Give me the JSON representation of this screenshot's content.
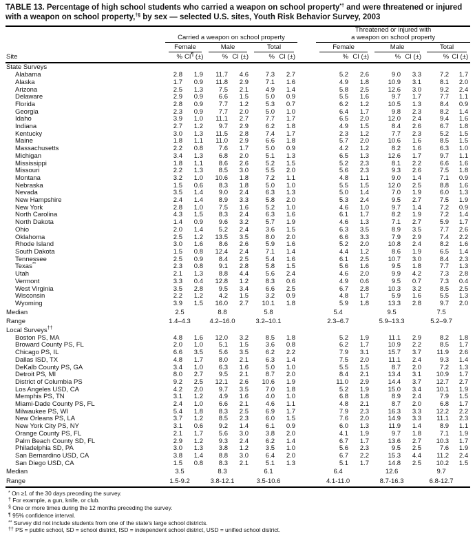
{
  "title": {
    "part1": "TABLE 13. Percentage of high school students who carried a weapon on school property",
    "sup1": "*†",
    "part2": " and were threatened or injured with a weapon on school property,",
    "sup2": "†§",
    "part3": " by sex — selected U.S. sites, Youth Risk Behavior Survey, 2003"
  },
  "header": {
    "site_label": "Site",
    "groups": [
      {
        "label": "Carried a weapon on school property"
      },
      {
        "label": "Threatened or injured with\na weapon on school property"
      }
    ],
    "subgroups": [
      "Female",
      "Male",
      "Total"
    ],
    "pct_label": "%",
    "ci_label": "CI (±)",
    "ci_first": {
      "pre": "CI",
      "sup": "¶",
      "post": " (±)"
    }
  },
  "sections": [
    {
      "label": "State Surveys",
      "label_sup": "",
      "rows": [
        {
          "site": "Alabama",
          "values": [
            "2.8",
            "1.9",
            "11.7",
            "4.6",
            "7.3",
            "2.7",
            "5.2",
            "2.6",
            "9.0",
            "3.3",
            "7.2",
            "1.7"
          ]
        },
        {
          "site": "Alaska",
          "values": [
            "1.7",
            "0.9",
            "11.8",
            "2.9",
            "7.1",
            "1.6",
            "4.9",
            "1.8",
            "10.9",
            "3.1",
            "8.1",
            "2.0"
          ]
        },
        {
          "site": "Arizona",
          "values": [
            "2.5",
            "1.3",
            "7.5",
            "2.1",
            "4.9",
            "1.4",
            "5.8",
            "2.5",
            "12.6",
            "3.0",
            "9.2",
            "2.4"
          ]
        },
        {
          "site": "Delaware",
          "values": [
            "2.9",
            "0.9",
            "6.6",
            "1.5",
            "5.0",
            "0.9",
            "5.5",
            "1.6",
            "9.7",
            "1.7",
            "7.7",
            "1.1"
          ]
        },
        {
          "site": "Florida",
          "values": [
            "2.8",
            "0.9",
            "7.7",
            "1.2",
            "5.3",
            "0.7",
            "6.2",
            "1.2",
            "10.5",
            "1.3",
            "8.4",
            "0.9"
          ]
        },
        {
          "site": "Georgia",
          "values": [
            "2.3",
            "0.9",
            "7.7",
            "2.0",
            "5.0",
            "1.0",
            "6.4",
            "1.7",
            "9.8",
            "2.3",
            "8.2",
            "1.4"
          ]
        },
        {
          "site": "Idaho",
          "values": [
            "3.9",
            "1.0",
            "11.1",
            "2.7",
            "7.7",
            "1.7",
            "6.5",
            "2.0",
            "12.0",
            "2.4",
            "9.4",
            "1.6"
          ]
        },
        {
          "site": "Indiana",
          "values": [
            "2.7",
            "1.2",
            "9.7",
            "2.9",
            "6.2",
            "1.8",
            "4.9",
            "1.5",
            "8.4",
            "2.6",
            "6.7",
            "1.8"
          ]
        },
        {
          "site": "Kentucky",
          "values": [
            "3.0",
            "1.3",
            "11.5",
            "2.8",
            "7.4",
            "1.7",
            "2.3",
            "1.2",
            "7.7",
            "2.3",
            "5.2",
            "1.5"
          ]
        },
        {
          "site": "Maine",
          "values": [
            "1.8",
            "1.1",
            "11.0",
            "2.9",
            "6.6",
            "1.8",
            "5.7",
            "2.0",
            "10.6",
            "1.6",
            "8.5",
            "1.5"
          ]
        },
        {
          "site": "Massachusetts",
          "values": [
            "2.2",
            "0.8",
            "7.6",
            "1.7",
            "5.0",
            "0.9",
            "4.2",
            "1.2",
            "8.2",
            "1.6",
            "6.3",
            "1.0"
          ]
        },
        {
          "site": "Michigan",
          "values": [
            "3.4",
            "1.3",
            "6.8",
            "2.0",
            "5.1",
            "1.3",
            "6.5",
            "1.3",
            "12.6",
            "1.7",
            "9.7",
            "1.1"
          ]
        },
        {
          "site": "Mississippi",
          "values": [
            "1.8",
            "1.1",
            "8.6",
            "2.6",
            "5.2",
            "1.5",
            "5.2",
            "2.3",
            "8.1",
            "2.2",
            "6.6",
            "1.6"
          ]
        },
        {
          "site": "Missouri",
          "values": [
            "2.2",
            "1.3",
            "8.5",
            "3.0",
            "5.5",
            "2.0",
            "5.6",
            "2.3",
            "9.3",
            "2.6",
            "7.5",
            "1.8"
          ]
        },
        {
          "site": "Montana",
          "values": [
            "3.2",
            "1.0",
            "10.6",
            "1.8",
            "7.2",
            "1.1",
            "4.8",
            "1.1",
            "9.0",
            "1.4",
            "7.1",
            "0.9"
          ]
        },
        {
          "site": "Nebraska",
          "values": [
            "1.5",
            "0.6",
            "8.3",
            "1.8",
            "5.0",
            "1.0",
            "5.5",
            "1.5",
            "12.0",
            "2.5",
            "8.8",
            "1.6"
          ]
        },
        {
          "site": "Nevada",
          "values": [
            "3.5",
            "1.4",
            "9.0",
            "2.4",
            "6.3",
            "1.3",
            "5.0",
            "1.4",
            "7.0",
            "1.9",
            "6.0",
            "1.3"
          ]
        },
        {
          "site": "New Hampshire",
          "values": [
            "2.4",
            "1.4",
            "8.9",
            "3.3",
            "5.8",
            "2.0",
            "5.3",
            "2.4",
            "9.5",
            "2.7",
            "7.5",
            "1.9"
          ]
        },
        {
          "site": "New York",
          "values": [
            "2.8",
            "1.0",
            "7.5",
            "1.6",
            "5.2",
            "1.0",
            "4.6",
            "1.0",
            "9.7",
            "1.4",
            "7.2",
            "0.9"
          ]
        },
        {
          "site": "North Carolina",
          "values": [
            "4.3",
            "1.5",
            "8.3",
            "2.4",
            "6.3",
            "1.6",
            "6.1",
            "1.7",
            "8.2",
            "1.9",
            "7.2",
            "1.4"
          ]
        },
        {
          "site": "North Dakota",
          "values": [
            "1.4",
            "0.9",
            "9.6",
            "3.2",
            "5.7",
            "1.9",
            "4.6",
            "1.3",
            "7.1",
            "2.7",
            "5.9",
            "1.7"
          ]
        },
        {
          "site": "Ohio",
          "values": [
            "2.0",
            "1.4",
            "5.2",
            "2.4",
            "3.6",
            "1.5",
            "6.3",
            "3.5",
            "8.9",
            "3.5",
            "7.7",
            "2.6"
          ]
        },
        {
          "site": "Oklahoma",
          "values": [
            "2.5",
            "1.2",
            "13.5",
            "3.5",
            "8.0",
            "2.0",
            "6.6",
            "3.3",
            "7.9",
            "2.9",
            "7.4",
            "2.2"
          ]
        },
        {
          "site": "Rhode Island",
          "values": [
            "3.0",
            "1.6",
            "8.6",
            "2.6",
            "5.9",
            "1.6",
            "5.2",
            "2.0",
            "10.8",
            "2.4",
            "8.2",
            "1.6"
          ]
        },
        {
          "site": "South Dakota",
          "values": [
            "1.5",
            "0.8",
            "12.4",
            "2.4",
            "7.1",
            "1.4",
            "4.4",
            "1.2",
            "8.6",
            "1.9",
            "6.5",
            "1.4"
          ]
        },
        {
          "site": "Tennessee",
          "values": [
            "2.5",
            "0.9",
            "8.4",
            "2.5",
            "5.4",
            "1.6",
            "6.1",
            "2.5",
            "10.7",
            "3.0",
            "8.4",
            "2.3"
          ]
        },
        {
          "site": "Texas**",
          "values": [
            "2.3",
            "0.8",
            "9.1",
            "2.8",
            "5.8",
            "1.5",
            "5.6",
            "1.6",
            "9.5",
            "1.8",
            "7.7",
            "1.3"
          ]
        },
        {
          "site": "Utah",
          "values": [
            "2.1",
            "1.3",
            "8.8",
            "4.4",
            "5.6",
            "2.4",
            "4.6",
            "2.0",
            "9.9",
            "4.2",
            "7.3",
            "2.8"
          ]
        },
        {
          "site": "Vermont",
          "values": [
            "3.3",
            "0.4",
            "12.8",
            "1.2",
            "8.3",
            "0.6",
            "4.9",
            "0.6",
            "9.5",
            "0.7",
            "7.3",
            "0.4"
          ]
        },
        {
          "site": "West Virginia",
          "values": [
            "3.5",
            "2.8",
            "9.5",
            "3.4",
            "6.6",
            "2.5",
            "6.7",
            "2.8",
            "10.3",
            "3.2",
            "8.5",
            "2.5"
          ]
        },
        {
          "site": "Wisconsin",
          "values": [
            "2.2",
            "1.2",
            "4.2",
            "1.5",
            "3.2",
            "0.9",
            "4.8",
            "1.7",
            "5.9",
            "1.6",
            "5.5",
            "1.3"
          ]
        },
        {
          "site": "Wyoming",
          "values": [
            "3.9",
            "1.5",
            "16.0",
            "2.7",
            "10.1",
            "1.8",
            "5.9",
            "1.8",
            "13.3",
            "2.8",
            "9.7",
            "2.0"
          ]
        }
      ],
      "median": {
        "label": "Median",
        "values": [
          "2.5",
          "8.8",
          "5.8",
          "5.4",
          "9.5",
          "7.5"
        ]
      },
      "range": {
        "label": "Range",
        "values": [
          "1.4–4.3",
          "4.2–16.0",
          "3.2–10.1",
          "2.3–6.7",
          "5.9–13.3",
          "5.2–9.7"
        ]
      }
    },
    {
      "label": "Local Surveys",
      "label_sup": "††",
      "rows": [
        {
          "site": "Boston PS, MA",
          "values": [
            "4.8",
            "1.6",
            "12.0",
            "3.2",
            "8.5",
            "1.8",
            "5.2",
            "1.9",
            "11.1",
            "2.9",
            "8.2",
            "1.8"
          ]
        },
        {
          "site": "Broward County PS, FL",
          "values": [
            "2.0",
            "1.0",
            "5.1",
            "1.5",
            "3.6",
            "0.8",
            "6.2",
            "1.7",
            "10.9",
            "2.2",
            "8.5",
            "1.7"
          ]
        },
        {
          "site": "Chicago PS, IL",
          "values": [
            "6.6",
            "3.5",
            "5.6",
            "3.5",
            "6.2",
            "2.2",
            "7.9",
            "3.1",
            "15.7",
            "3.7",
            "11.9",
            "2.6"
          ]
        },
        {
          "site": "Dallas ISD, TX",
          "values": [
            "4.8",
            "1.7",
            "8.0",
            "2.1",
            "6.3",
            "1.4",
            "7.5",
            "2.0",
            "11.1",
            "2.4",
            "9.3",
            "1.4"
          ]
        },
        {
          "site": "DeKalb County PS, GA",
          "values": [
            "3.4",
            "1.0",
            "6.3",
            "1.6",
            "5.0",
            "1.0",
            "5.5",
            "1.5",
            "8.7",
            "2.0",
            "7.2",
            "1.3"
          ]
        },
        {
          "site": "Detroit PS, MI",
          "values": [
            "8.0",
            "2.7",
            "9.5",
            "2.1",
            "8.7",
            "2.0",
            "8.4",
            "2.1",
            "13.4",
            "3.1",
            "10.9",
            "1.7"
          ]
        },
        {
          "site": "District of Columbia PS",
          "values": [
            "9.2",
            "2.5",
            "12.1",
            "2.6",
            "10.6",
            "1.9",
            "11.0",
            "2.9",
            "14.4",
            "3.7",
            "12.7",
            "2.7"
          ]
        },
        {
          "site": "Los Angeles USD, CA",
          "values": [
            "4.2",
            "2.0",
            "9.7",
            "3.5",
            "7.0",
            "1.8",
            "5.2",
            "1.9",
            "15.0",
            "3.4",
            "10.1",
            "1.9"
          ]
        },
        {
          "site": "Memphis PS, TN",
          "values": [
            "3.1",
            "1.2",
            "4.9",
            "1.6",
            "4.0",
            "1.0",
            "6.8",
            "1.8",
            "8.9",
            "2.4",
            "7.9",
            "1.5"
          ]
        },
        {
          "site": "Miami-Dade County PS, FL",
          "values": [
            "2.4",
            "1.0",
            "6.6",
            "2.1",
            "4.6",
            "1.1",
            "4.8",
            "2.1",
            "8.7",
            "2.0",
            "6.8",
            "1.7"
          ]
        },
        {
          "site": "Milwaukee PS, WI",
          "values": [
            "5.4",
            "1.8",
            "8.3",
            "2.5",
            "6.9",
            "1.7",
            "7.9",
            "2.3",
            "16.3",
            "3.3",
            "12.2",
            "2.2"
          ]
        },
        {
          "site": "New Orleans PS, LA",
          "values": [
            "3.7",
            "1.2",
            "8.5",
            "2.3",
            "6.0",
            "1.5",
            "7.6",
            "2.0",
            "14.9",
            "3.3",
            "11.1",
            "2.3"
          ]
        },
        {
          "site": "New York City PS, NY",
          "values": [
            "3.1",
            "0.6",
            "9.2",
            "1.4",
            "6.1",
            "0.9",
            "6.0",
            "1.3",
            "11.9",
            "1.4",
            "8.9",
            "1.1"
          ]
        },
        {
          "site": "Orange County PS, FL",
          "values": [
            "2.1",
            "1.7",
            "5.6",
            "3.0",
            "3.8",
            "2.0",
            "4.1",
            "1.9",
            "9.7",
            "1.8",
            "7.1",
            "1.9"
          ]
        },
        {
          "site": "Palm Beach County SD, FL",
          "values": [
            "2.9",
            "1.2",
            "9.3",
            "2.4",
            "6.2",
            "1.4",
            "6.7",
            "1.7",
            "13.6",
            "2.7",
            "10.3",
            "1.7"
          ]
        },
        {
          "site": "Philadelphia SD, PA",
          "values": [
            "3.0",
            "1.3",
            "3.8",
            "1.2",
            "3.5",
            "1.0",
            "5.6",
            "2.3",
            "9.5",
            "2.5",
            "7.6",
            "1.9"
          ]
        },
        {
          "site": "San Bernardino USD, CA",
          "values": [
            "3.8",
            "1.4",
            "8.8",
            "3.0",
            "6.4",
            "2.0",
            "6.7",
            "2.2",
            "15.3",
            "4.4",
            "11.2",
            "2.4"
          ]
        },
        {
          "site": "San Diego USD, CA",
          "values": [
            "1.5",
            "0.8",
            "8.3",
            "2.1",
            "5.1",
            "1.3",
            "5.1",
            "1.7",
            "14.8",
            "2.5",
            "10.2",
            "1.5"
          ]
        }
      ],
      "median": {
        "label": "Median",
        "values": [
          "3.5",
          "8.3",
          "6.1",
          "6.4",
          "12.6",
          "9.7"
        ]
      },
      "range": {
        "label": "Range",
        "values": [
          "1.5-9.2",
          "3.8-12.1",
          "3.5-10.6",
          "4.1-11.0",
          "8.7-16.3",
          "6.8-12.7"
        ]
      }
    }
  ],
  "footnotes": [
    {
      "marker": "*",
      "text": "On ≥1 of the 30 days preceding the survey."
    },
    {
      "marker": "†",
      "text": "For example, a gun, knife, or club."
    },
    {
      "marker": "§",
      "text": "One or more times during the 12 months preceding the survey."
    },
    {
      "marker": "¶",
      "text": "95% confidence interval."
    },
    {
      "marker": "**",
      "text": "Survey did not include students from one of the state's large school districts."
    },
    {
      "marker": "††",
      "text": "PS = public school, SD = school district, ISD = independent school district, USD = unified school district."
    }
  ]
}
